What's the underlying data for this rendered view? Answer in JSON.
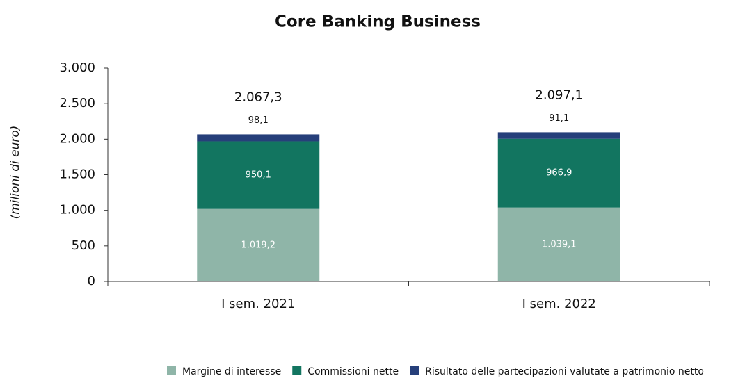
{
  "chart_data": {
    "type": "stacked_bar",
    "title": "Core Banking Business",
    "y_label": "(milioni di euro)",
    "categories": [
      "I sem. 2021",
      "I sem. 2022"
    ],
    "series": [
      {
        "name": "Margine di interesse",
        "color": "#8fb5a8",
        "values": [
          1019.2,
          1039.1
        ],
        "value_labels": [
          "1.019,2",
          "1.039,1"
        ]
      },
      {
        "name": "Commissioni nette",
        "color": "#127560",
        "values": [
          950.1,
          966.9
        ],
        "value_labels": [
          "950,1",
          "966,9"
        ]
      },
      {
        "name": "Risultato delle partecipazioni valutate a patrimonio netto",
        "color": "#263f7a",
        "values": [
          98.1,
          91.1
        ],
        "value_labels": [
          "98,1",
          "91,1"
        ]
      }
    ],
    "total_labels": [
      "2.067,3",
      "2.097,1"
    ],
    "ylim": [
      0,
      3000
    ],
    "yticks": [
      0,
      500,
      {
        "value": 1000,
        "label": "1.000"
      },
      {
        "value": 1500,
        "label": "1.500"
      },
      {
        "value": 2000,
        "label": "2.000"
      },
      {
        "value": 2500,
        "label": "2.500"
      },
      {
        "value": 3000,
        "label": "3.000"
      }
    ],
    "legend": "bottom"
  }
}
